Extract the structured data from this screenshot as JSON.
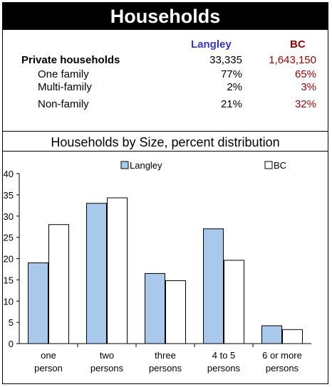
{
  "header": {
    "title": "Households"
  },
  "stats": {
    "columns": [
      "Langley",
      "BC"
    ],
    "column_colors": [
      "#3333cc",
      "#990000"
    ],
    "rows": [
      {
        "label": "Private households",
        "langley": "33,335",
        "bc": "1,643,150",
        "bold": true
      },
      {
        "label": "One family",
        "langley": "77%",
        "bc": "65%",
        "bold": false
      },
      {
        "label": "Multi-family",
        "langley": "2%",
        "bc": "3%",
        "bold": false
      },
      {
        "label": "Non-family",
        "langley": "21%",
        "bc": "32%",
        "bold": false
      }
    ]
  },
  "chart_data": {
    "type": "bar",
    "title": "Households by Size, percent distribution",
    "categories": [
      [
        "one",
        "person"
      ],
      [
        "two",
        "persons"
      ],
      [
        "three",
        "persons"
      ],
      [
        "4 to 5",
        "persons"
      ],
      [
        "6 or  more",
        "persons"
      ]
    ],
    "series": [
      {
        "name": "Langley",
        "values": [
          19,
          33,
          16.5,
          27,
          4.2
        ],
        "color": "#a8c8ec"
      },
      {
        "name": "BC",
        "values": [
          28,
          34.3,
          14.8,
          19.6,
          3.3
        ],
        "color": "#ffffff"
      }
    ],
    "ylim": [
      0,
      40
    ],
    "yticks": [
      0,
      5,
      10,
      15,
      20,
      25,
      30,
      35,
      40
    ],
    "legend_position": "top",
    "grid": false
  }
}
